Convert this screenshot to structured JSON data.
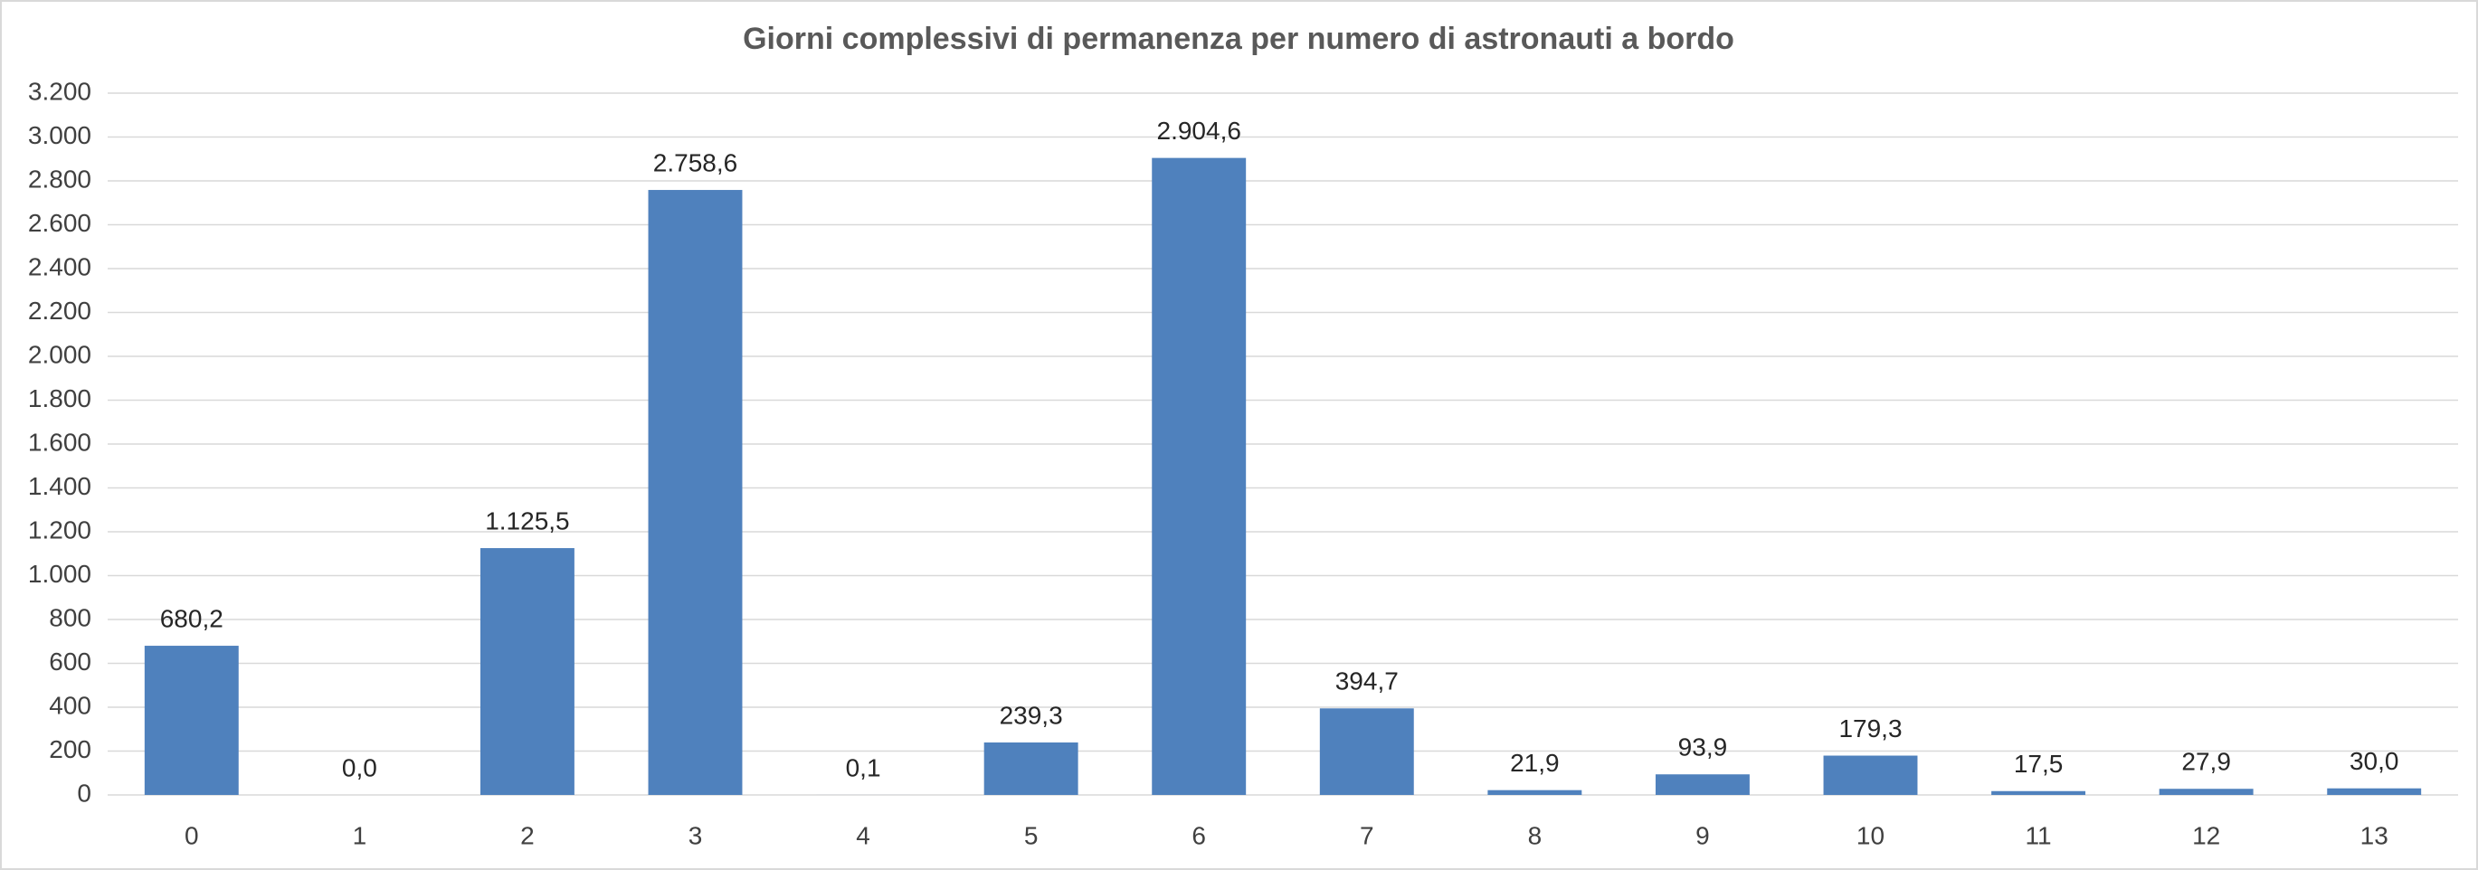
{
  "chart_data": {
    "type": "bar",
    "title": "Giorni complessivi di permanenza per numero di astronauti a bordo",
    "categories": [
      "0",
      "1",
      "2",
      "3",
      "4",
      "5",
      "6",
      "7",
      "8",
      "9",
      "10",
      "11",
      "12",
      "13"
    ],
    "values": [
      680.2,
      0.0,
      1125.5,
      2758.6,
      0.1,
      239.3,
      2904.6,
      394.7,
      21.9,
      93.9,
      179.3,
      17.5,
      27.9,
      30.0
    ],
    "value_labels": [
      "680,2",
      "0,0",
      "1.125,5",
      "2.758,6",
      "0,1",
      "239,3",
      "2.904,6",
      "394,7",
      "21,9",
      "93,9",
      "179,3",
      "17,5",
      "27,9",
      "30,0"
    ],
    "color": "#4f81bd",
    "ylim": [
      0,
      3200
    ],
    "yticks": [
      0,
      200,
      400,
      600,
      800,
      {
        "value": 1000,
        "label": "1.000"
      },
      {
        "value": 1200,
        "label": "1.200"
      },
      {
        "value": 1400,
        "label": "1.400"
      },
      {
        "value": 1600,
        "label": "1.600"
      },
      {
        "value": 1800,
        "label": "1.800"
      },
      {
        "value": 2000,
        "label": "2.000"
      },
      {
        "value": 2200,
        "label": "2.200"
      },
      {
        "value": 2400,
        "label": "2.400"
      },
      {
        "value": 2600,
        "label": "2.600"
      },
      {
        "value": 2800,
        "label": "2.800"
      },
      {
        "value": 3000,
        "label": "3.000"
      },
      {
        "value": 3200,
        "label": "3.200"
      }
    ],
    "grid": true
  }
}
